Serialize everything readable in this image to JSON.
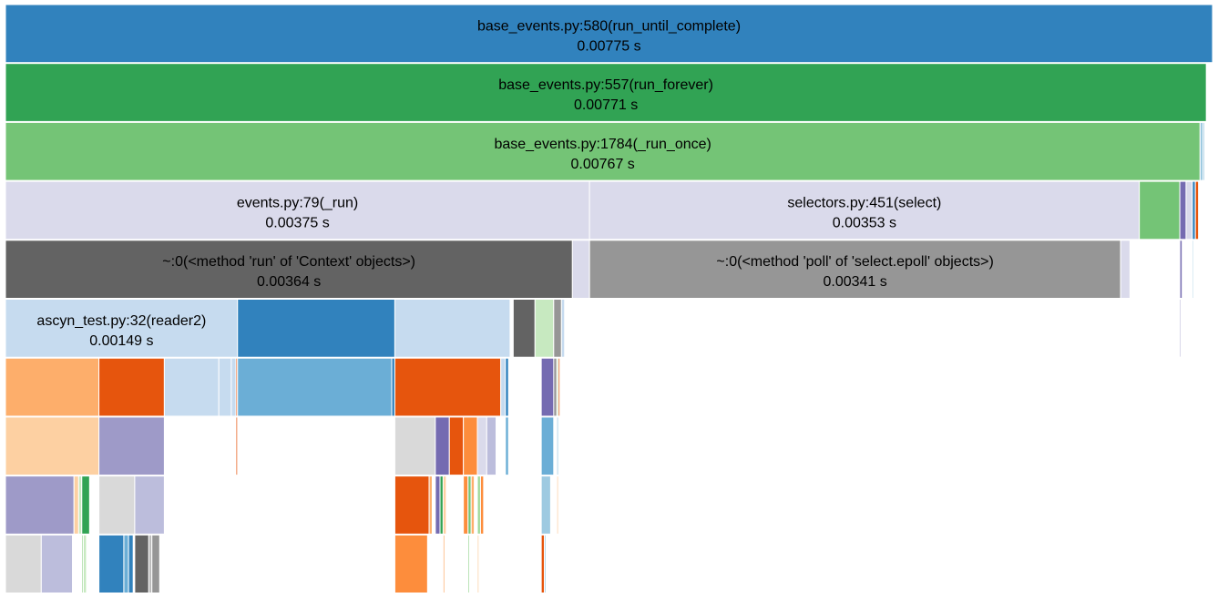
{
  "chart_data": {
    "type": "icicle",
    "units": "s",
    "total": 0.00775,
    "frames": [
      {
        "id": "root",
        "label": "base_events.py:580(run_until_complete)",
        "value": 0.00775,
        "color": "#3182bd"
      },
      {
        "id": "forever",
        "parent": "root",
        "label": "base_events.py:557(run_forever)",
        "value": 0.00771,
        "color": "#31a354"
      },
      {
        "id": "runonce",
        "parent": "forever",
        "label": "base_events.py:1784(_run_once)",
        "value": 0.00767,
        "color": "#74c476"
      },
      {
        "id": "events_run",
        "parent": "runonce",
        "label": "events.py:79(_run)",
        "value": 0.00375,
        "color": "#dadaeb"
      },
      {
        "id": "ctx_run",
        "parent": "events_run",
        "label": "~:0(<method 'run' of 'Context' objects>)",
        "value": 0.00364,
        "color": "#636363"
      },
      {
        "id": "ctx_rest",
        "parent": "events_run",
        "label": "",
        "value": 0.00011,
        "color": "#dadaeb"
      },
      {
        "id": "selector",
        "parent": "runonce",
        "label": "selectors.py:451(select)",
        "value": 0.00353,
        "color": "#dadaeb"
      },
      {
        "id": "epoll",
        "parent": "selector",
        "label": "~:0(<method 'poll' of 'select.epoll' objects>)",
        "value": 0.00341,
        "color": "#969696"
      },
      {
        "id": "sel_rest",
        "parent": "selector",
        "label": "",
        "value": 6e-05,
        "color": "#dadaeb"
      },
      {
        "id": "r_a",
        "parent": "runonce",
        "label": "",
        "value": 0.00026,
        "color": "#74c476"
      },
      {
        "id": "r_b",
        "parent": "runonce",
        "label": "",
        "value": 4e-05,
        "color": "#756bb1"
      },
      {
        "id": "r_c",
        "parent": "runonce",
        "label": "",
        "value": 4e-05,
        "color": "#dadaeb"
      },
      {
        "id": "r_d",
        "parent": "runonce",
        "label": "",
        "value": 2e-05,
        "color": "#3182bd"
      },
      {
        "id": "r_e",
        "parent": "runonce",
        "label": "",
        "value": 2e-05,
        "color": "#e6550d"
      },
      {
        "id": "rb_child",
        "parent": "r_b",
        "label": "",
        "value": 1.5e-05,
        "color": "#756bb1"
      },
      {
        "id": "rd_child",
        "parent": "r_d",
        "label": "",
        "value": 8e-06,
        "color": "#9ecae1"
      },
      {
        "id": "rb_leaf",
        "parent": "rb_child",
        "label": "",
        "value": 8e-06,
        "color": "#9e9ac8"
      },
      {
        "id": "f_a",
        "parent": "forever",
        "label": "",
        "value": 2e-05,
        "color": "#9ecae1"
      },
      {
        "id": "f_b",
        "parent": "forever",
        "label": "",
        "value": 1e-05,
        "color": "#9ecae1"
      },
      {
        "id": "rf_a",
        "parent": "runonce",
        "label": "",
        "value": 0.0,
        "color": "#74c476"
      },
      {
        "id": "reader2",
        "parent": "ctx_run",
        "label": "ascyn_test.py:32(reader2)",
        "value": 0.00149,
        "color": "#c6dbef"
      },
      {
        "id": "c_blue",
        "parent": "ctx_run",
        "label": "",
        "value": 0.00101,
        "color": "#3182bd"
      },
      {
        "id": "c_light",
        "parent": "ctx_run",
        "label": "",
        "value": 0.00074,
        "color": "#c6dbef"
      },
      {
        "id": "c_gap",
        "parent": "ctx_run",
        "label": "",
        "value": 2e-05,
        "color": "#ffffff"
      },
      {
        "id": "c_dgray",
        "parent": "ctx_run",
        "label": "",
        "value": 0.00014,
        "color": "#636363"
      },
      {
        "id": "c_green",
        "parent": "ctx_run",
        "label": "",
        "value": 0.00012,
        "color": "#c7e9c0"
      },
      {
        "id": "c_gray",
        "parent": "ctx_run",
        "label": "",
        "value": 5e-05,
        "color": "#969696"
      },
      {
        "id": "c_tiny",
        "parent": "ctx_run",
        "label": "",
        "value": 2e-05,
        "color": "#c6dbef"
      },
      {
        "id": "rd1",
        "parent": "reader2",
        "label": "",
        "value": 0.0006,
        "color": "#fdae6b"
      },
      {
        "id": "rd2",
        "parent": "reader2",
        "label": "",
        "value": 0.00042,
        "color": "#e6550d"
      },
      {
        "id": "rd3",
        "parent": "reader2",
        "label": "",
        "value": 0.00035,
        "color": "#c6dbef"
      },
      {
        "id": "rd4",
        "parent": "reader2",
        "label": "",
        "value": 8e-05,
        "color": "#c6dbef"
      },
      {
        "id": "rd5",
        "parent": "reader2",
        "label": "",
        "value": 3e-05,
        "color": "#c6dbef"
      },
      {
        "id": "rd6",
        "parent": "reader2",
        "label": "",
        "value": 1e-05,
        "color": "#e6550d"
      },
      {
        "id": "rd1a",
        "parent": "rd1",
        "label": "",
        "value": 0.0006,
        "color": "#fdd0a2"
      },
      {
        "id": "rd2a",
        "parent": "rd2",
        "label": "",
        "value": 0.00042,
        "color": "#9e9ac8"
      },
      {
        "id": "rd6a",
        "parent": "rd6",
        "label": "",
        "value": 1e-05,
        "color": "#e6550d"
      },
      {
        "id": "rd1a1",
        "parent": "rd1a",
        "label": "",
        "value": 0.00044,
        "color": "#9e9ac8"
      },
      {
        "id": "rd1a2",
        "parent": "rd1a",
        "label": "",
        "value": 3e-05,
        "color": "#fdd0a2"
      },
      {
        "id": "rd1a3",
        "parent": "rd1a",
        "label": "",
        "value": 2e-05,
        "color": "#c7e9c0"
      },
      {
        "id": "rd1a4",
        "parent": "rd1a",
        "label": "",
        "value": 5e-05,
        "color": "#31a354"
      },
      {
        "id": "rd2a1",
        "parent": "rd2a",
        "label": "",
        "value": 0.00023,
        "color": "#d9d9d9"
      },
      {
        "id": "rd2a2",
        "parent": "rd2a",
        "label": "",
        "value": 0.00019,
        "color": "#bcbddc"
      },
      {
        "id": "rd1a1a",
        "parent": "rd1a1",
        "label": "",
        "value": 0.00023,
        "color": "#d9d9d9"
      },
      {
        "id": "rd1a1b",
        "parent": "rd1a1",
        "label": "",
        "value": 0.0002,
        "color": "#bcbddc"
      },
      {
        "id": "rd1a4a",
        "parent": "rd1a4",
        "label": "",
        "value": 1e-05,
        "color": "#a1d99b"
      },
      {
        "id": "rd1a4b",
        "parent": "rd1a4",
        "label": "",
        "value": 2e-05,
        "color": "#c7e9c0"
      },
      {
        "id": "rd2a1a",
        "parent": "rd2a1",
        "label": "",
        "value": 0.00016,
        "color": "#3182bd"
      },
      {
        "id": "rd2a1b",
        "parent": "rd2a1",
        "label": "",
        "value": 3e-05,
        "color": "#6baed6"
      },
      {
        "id": "rd2a1c",
        "parent": "rd2a1",
        "label": "",
        "value": 3e-05,
        "color": "#3182bd"
      },
      {
        "id": "rd2a2a",
        "parent": "rd2a2",
        "label": "",
        "value": 9e-05,
        "color": "#636363"
      },
      {
        "id": "rd2a2b",
        "parent": "rd2a2",
        "label": "",
        "value": 2e-05,
        "color": "#bdbdbd"
      },
      {
        "id": "rd2a2c",
        "parent": "rd2a2",
        "label": "",
        "value": 5e-05,
        "color": "#969696"
      },
      {
        "id": "cb1",
        "parent": "c_blue",
        "label": "",
        "value": 0.00099,
        "color": "#6baed6"
      },
      {
        "id": "cb2",
        "parent": "c_blue",
        "label": "",
        "value": 2e-05,
        "color": "#3182bd"
      },
      {
        "id": "cl1",
        "parent": "c_light",
        "label": "",
        "value": 0.00068,
        "color": "#e6550d"
      },
      {
        "id": "cl2",
        "parent": "c_light",
        "label": "",
        "value": 3e-05,
        "color": "#c6dbef"
      },
      {
        "id": "cl3",
        "parent": "c_light",
        "label": "",
        "value": 2e-05,
        "color": "#3182bd"
      },
      {
        "id": "cl1a",
        "parent": "cl1",
        "label": "",
        "value": 0.00026,
        "color": "#d9d9d9"
      },
      {
        "id": "cl1b",
        "parent": "cl1",
        "label": "",
        "value": 9e-05,
        "color": "#756bb1"
      },
      {
        "id": "cl1c",
        "parent": "cl1",
        "label": "",
        "value": 9e-05,
        "color": "#e6550d"
      },
      {
        "id": "cl1d",
        "parent": "cl1",
        "label": "",
        "value": 9e-05,
        "color": "#fd8d3c"
      },
      {
        "id": "cl1e",
        "parent": "cl1",
        "label": "",
        "value": 6e-05,
        "color": "#dadaeb"
      },
      {
        "id": "cl1f",
        "parent": "cl1",
        "label": "",
        "value": 6e-05,
        "color": "#bcbddc"
      },
      {
        "id": "cl3a",
        "parent": "cl3",
        "label": "",
        "value": 2e-05,
        "color": "#6baed6"
      },
      {
        "id": "cl1a1",
        "parent": "cl1a",
        "label": "",
        "value": 0.00022,
        "color": "#e6550d"
      },
      {
        "id": "cl1a2",
        "parent": "cl1a",
        "label": "",
        "value": 2e-05,
        "color": "#fdae6b"
      },
      {
        "id": "cl1b1",
        "parent": "cl1b",
        "label": "",
        "value": 3e-05,
        "color": "#756bb1"
      },
      {
        "id": "cl1b2",
        "parent": "cl1b",
        "label": "",
        "value": 2e-05,
        "color": "#31a354"
      },
      {
        "id": "cl1b3",
        "parent": "cl1b",
        "label": "",
        "value": 2e-05,
        "color": "#fdd0a2"
      },
      {
        "id": "cl1d1",
        "parent": "cl1d",
        "label": "",
        "value": 3e-05,
        "color": "#fd8d3c"
      },
      {
        "id": "cl1d2",
        "parent": "cl1d",
        "label": "",
        "value": 2e-05,
        "color": "#74c476"
      },
      {
        "id": "cl1d3",
        "parent": "cl1d",
        "label": "",
        "value": 2e-05,
        "color": "#fdae6b"
      },
      {
        "id": "cl1e1",
        "parent": "cl1e",
        "label": "",
        "value": 2e-05,
        "color": "#a1d99b"
      },
      {
        "id": "cl1e2",
        "parent": "cl1e",
        "label": "",
        "value": 2e-05,
        "color": "#fd8d3c"
      },
      {
        "id": "cl1a1a",
        "parent": "cl1a1",
        "label": "",
        "value": 0.00021,
        "color": "#fd8d3c"
      },
      {
        "id": "cl1b3a",
        "parent": "cl1b3",
        "label": "",
        "value": 1e-05,
        "color": "#fdae6b"
      },
      {
        "id": "cl1d2a",
        "parent": "cl1d2",
        "label": "",
        "value": 1e-05,
        "color": "#a1d99b"
      },
      {
        "id": "cl1e1a",
        "parent": "cl1e1",
        "label": "",
        "value": 1e-05,
        "color": "#fdd0a2"
      },
      {
        "id": "cg1",
        "parent": "c_green",
        "label": "",
        "value": 4e-05,
        "color": "#ffffff"
      },
      {
        "id": "cg2",
        "parent": "c_green",
        "label": "",
        "value": 0.0001,
        "color": "#756bb1"
      },
      {
        "id": "cg3",
        "parent": "c_green",
        "label": "",
        "value": 2e-05,
        "color": "#e6550d"
      },
      {
        "id": "cgr1",
        "parent": "c_gray",
        "label": "",
        "value": 2e-05,
        "color": "#969696"
      },
      {
        "id": "cgr2",
        "parent": "c_gray",
        "label": "",
        "value": 1e-05,
        "color": "#c7e9c0"
      },
      {
        "id": "cg2a",
        "parent": "cg2",
        "label": "",
        "value": 8e-05,
        "color": "#6baed6"
      },
      {
        "id": "cg3a",
        "parent": "cg3",
        "label": "",
        "value": 1e-05,
        "color": "#9ecae1"
      },
      {
        "id": "cg2a1",
        "parent": "cg2a",
        "label": "",
        "value": 6e-05,
        "color": "#9ecae1"
      },
      {
        "id": "cg3a1",
        "parent": "cg3a",
        "label": "",
        "value": 1e-05,
        "color": "#fdd0a2"
      },
      {
        "id": "cg2a1a",
        "parent": "cg2a1",
        "label": "",
        "value": 2e-05,
        "color": "#e6550d"
      },
      {
        "id": "cg2a1b",
        "parent": "cg2a1",
        "label": "",
        "value": 1e-05,
        "color": "#9ecae1"
      }
    ],
    "title": "",
    "xlabel": "",
    "ylabel": ""
  }
}
